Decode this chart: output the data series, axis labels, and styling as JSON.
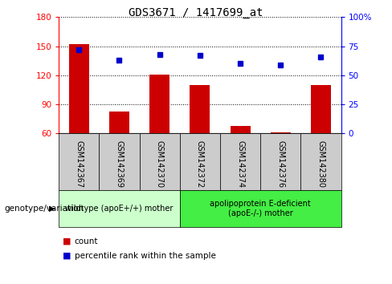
{
  "title": "GDS3671 / 1417699_at",
  "samples": [
    "GSM142367",
    "GSM142369",
    "GSM142370",
    "GSM142372",
    "GSM142374",
    "GSM142376",
    "GSM142380"
  ],
  "counts": [
    152,
    83,
    121,
    110,
    68,
    61,
    110
  ],
  "percentiles": [
    72,
    63,
    68,
    67,
    60,
    59,
    66
  ],
  "bar_color": "#cc0000",
  "dot_color": "#0000cc",
  "ylim_left": [
    60,
    180
  ],
  "ylim_right": [
    0,
    100
  ],
  "yticks_left": [
    60,
    90,
    120,
    150,
    180
  ],
  "yticks_right": [
    0,
    25,
    50,
    75,
    100
  ],
  "ytick_labels_right": [
    "0",
    "25",
    "50",
    "75",
    "100%"
  ],
  "group1_label": "wildtype (apoE+/+) mother",
  "group2_label": "apolipoprotein E-deficient\n(apoE-/-) mother",
  "group1_color": "#ccffcc",
  "group2_color": "#44ee44",
  "genotype_label": "genotype/variation",
  "legend_count_label": "count",
  "legend_percentile_label": "percentile rank within the sample",
  "bar_width": 0.5,
  "sample_box_color": "#cccccc",
  "title_fontsize": 10,
  "tick_fontsize": 7.5,
  "sample_fontsize": 7,
  "group_fontsize": 7,
  "legend_fontsize": 7.5,
  "genotype_fontsize": 7.5
}
